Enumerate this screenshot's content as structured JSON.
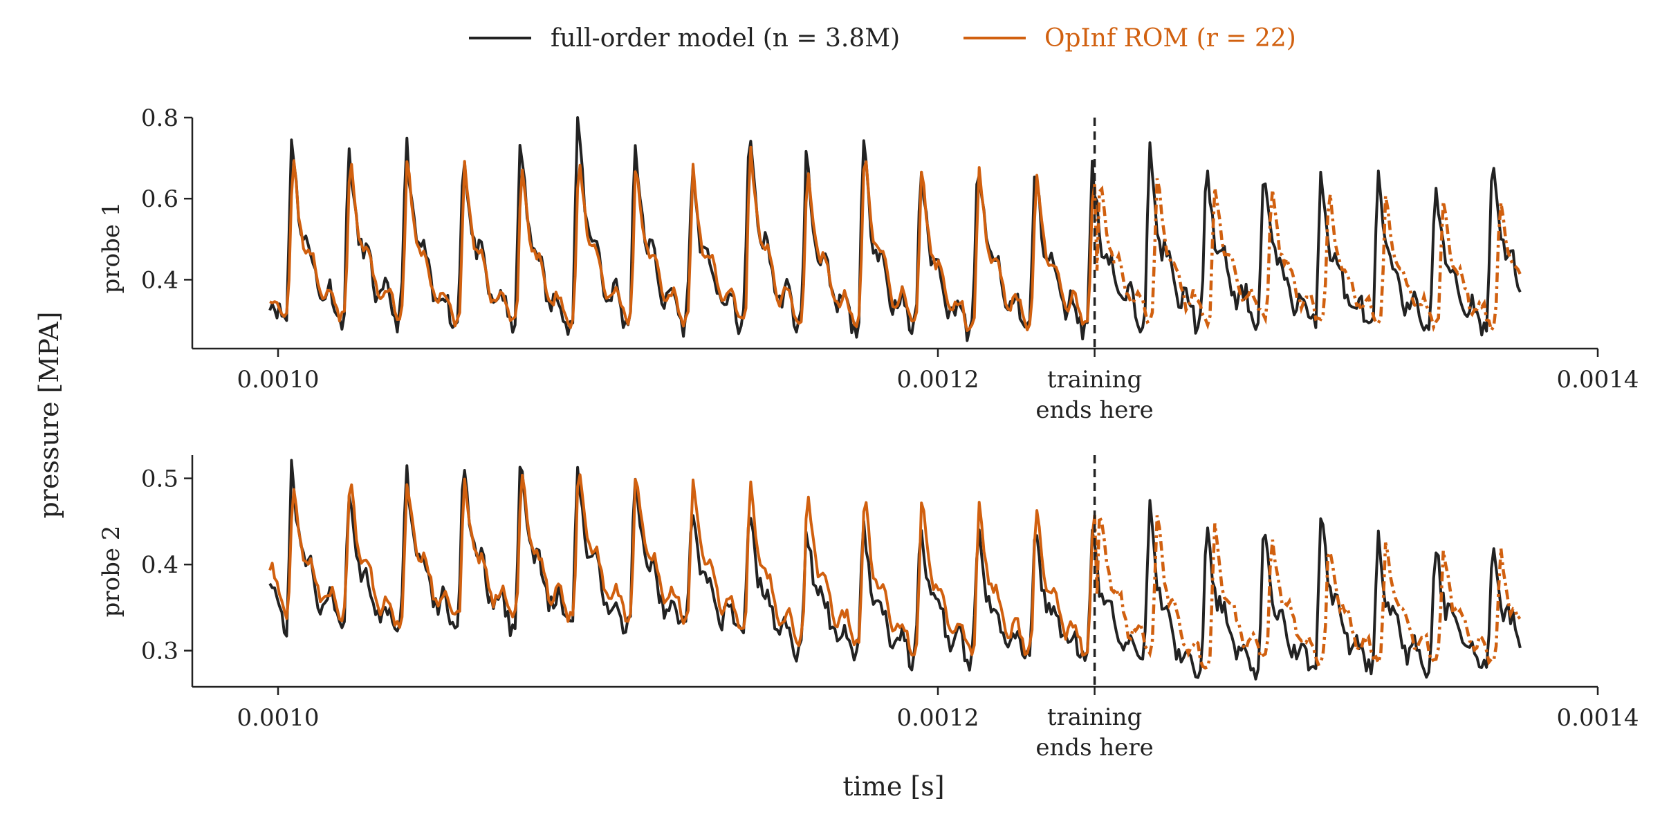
{
  "chart_data": {
    "type": "line",
    "shared_ylabel": "pressure [MPA]",
    "xlabel": "time [s]",
    "legend": {
      "placement": "top-center",
      "entries": [
        {
          "label": "full-order model (n = 3.8M)",
          "color": "#222222"
        },
        {
          "label": "OpInf ROM (r = 22)",
          "color": "#d1600f"
        }
      ]
    },
    "annotation": {
      "label_line1": "training",
      "label_line2": "ends here",
      "x": 0.0012475
    },
    "xlim": [
      0.000974,
      0.0014
    ],
    "xticks": [
      0.001,
      0.0012,
      0.0014
    ],
    "xtick_labels": [
      "0.0010",
      "0.0012",
      "0.0014"
    ],
    "period": 1.733e-05,
    "subplots": [
      {
        "ylabel": "probe 1",
        "ylim": [
          0.23,
          0.8
        ],
        "yticks": [
          0.4,
          0.6,
          0.8
        ],
        "ytick_labels": [
          "0.4",
          "0.6",
          "0.8"
        ],
        "fom_peaks": [
          0.73,
          0.7,
          0.72,
          0.7,
          0.72,
          0.78,
          0.72,
          0.66,
          0.75,
          0.68,
          0.71,
          0.66,
          0.68,
          0.66,
          0.66,
          0.7,
          0.66,
          0.65,
          0.65,
          0.63,
          0.62,
          0.69,
          0.57
        ],
        "rom_peaks": [
          0.68,
          0.68,
          0.67,
          0.66,
          0.67,
          0.69,
          0.66,
          0.65,
          0.7,
          0.66,
          0.7,
          0.64,
          0.66,
          0.64,
          0.63,
          0.63,
          0.62,
          0.61,
          0.6,
          0.59,
          0.58,
          0.59,
          0.58
        ],
        "troughs_fom": [
          0.3,
          0.3,
          0.3,
          0.29,
          0.29,
          0.28,
          0.29,
          0.29,
          0.29,
          0.29,
          0.28,
          0.28,
          0.27,
          0.28,
          0.28,
          0.3,
          0.29,
          0.3,
          0.29,
          0.28,
          0.28,
          0.28,
          0.3
        ],
        "start_value": 0.35
      },
      {
        "ylabel": "probe 2",
        "ylim": [
          0.258,
          0.527
        ],
        "yticks": [
          0.3,
          0.4,
          0.5
        ],
        "ytick_labels": [
          "0.3",
          "0.4",
          "0.5"
        ],
        "fom_peaks": [
          0.5,
          0.48,
          0.5,
          0.51,
          0.51,
          0.5,
          0.49,
          0.46,
          0.46,
          0.44,
          0.44,
          0.44,
          0.43,
          0.43,
          0.43,
          0.46,
          0.44,
          0.43,
          0.45,
          0.42,
          0.42,
          0.42,
          0.42
        ],
        "rom_peaks": [
          0.49,
          0.49,
          0.49,
          0.49,
          0.5,
          0.51,
          0.5,
          0.49,
          0.49,
          0.48,
          0.47,
          0.47,
          0.46,
          0.46,
          0.46,
          0.45,
          0.44,
          0.43,
          0.42,
          0.42,
          0.41,
          0.41,
          0.42
        ],
        "troughs_fom": [
          0.32,
          0.33,
          0.32,
          0.33,
          0.33,
          0.33,
          0.33,
          0.33,
          0.32,
          0.3,
          0.3,
          0.29,
          0.29,
          0.29,
          0.29,
          0.29,
          0.27,
          0.28,
          0.28,
          0.28,
          0.28,
          0.28,
          0.28
        ],
        "start_value": 0.39
      }
    ]
  }
}
